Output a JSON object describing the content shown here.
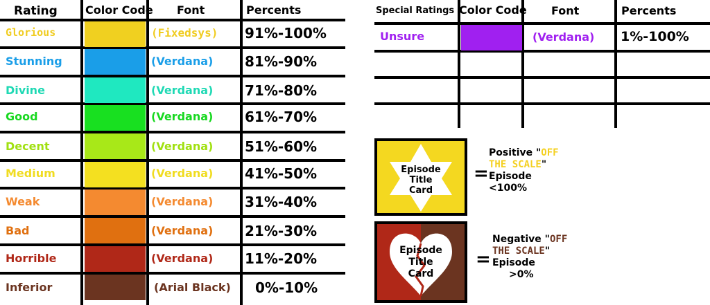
{
  "main_table": {
    "headers": {
      "rating": "Rating",
      "color": "Color Code",
      "font": "Font",
      "percents": "Percents"
    },
    "rows": [
      {
        "rating": "Glorious",
        "color": "#f0d020",
        "font": "(Fixedsys)",
        "percents": "91%-100%",
        "text_color": "#f0cc20"
      },
      {
        "rating": "Stunning",
        "color": "#1a9ee8",
        "font": "(Verdana)",
        "percents": "81%-90%",
        "text_color": "#1a9ee8"
      },
      {
        "rating": "Divine",
        "color": "#1fe8c0",
        "font": "(Verdana)",
        "percents": "71%-80%",
        "text_color": "#1fd9b4"
      },
      {
        "rating": "Good",
        "color": "#18e020",
        "font": "(Verdana)",
        "percents": "61%-70%",
        "text_color": "#18d820"
      },
      {
        "rating": "Decent",
        "color": "#a8e818",
        "font": "(Verdana)",
        "percents": "51%-60%",
        "text_color": "#a0e010"
      },
      {
        "rating": "Medium",
        "color": "#f4e020",
        "font": "(Verdana)",
        "percents": "41%-50%",
        "text_color": "#f0dc20"
      },
      {
        "rating": "Weak",
        "color": "#f48a30",
        "font": "(Verdana)",
        "percents": "31%-40%",
        "text_color": "#f48a30"
      },
      {
        "rating": "Bad",
        "color": "#e07010",
        "font": "(Verdana)",
        "percents": "21%-30%",
        "text_color": "#e07010"
      },
      {
        "rating": "Horrible",
        "color": "#b02818",
        "font": "(Verdana)",
        "percents": "11%-20%",
        "text_color": "#b02818"
      },
      {
        "rating": "Inferior",
        "color": "#6b3420",
        "font": "(Arial Black)",
        "percents": "0%-10%",
        "text_color": "#6b3420"
      }
    ]
  },
  "special_table": {
    "headers": {
      "rating": "Special Ratings",
      "color": "Color Code",
      "font": "Font",
      "percents": "Percents"
    },
    "rows": [
      {
        "rating": "Unsure",
        "color": "#a020f0",
        "font": "(Verdana)",
        "percents": "1%-100%",
        "text_color": "#a020f0"
      }
    ]
  },
  "legend": {
    "positive": {
      "card_text": [
        "Episode",
        "Title",
        "Card"
      ],
      "equals": "=",
      "line1a": "Positive \"",
      "line1b": "OFF",
      "line2a": "THE SCALE",
      "line2b": "\"",
      "line3": "Episode",
      "line4": "<100%",
      "accent": "#f4d020",
      "card_bg": "#f4d820"
    },
    "negative": {
      "card_text": [
        "Episode",
        "Title",
        "Card"
      ],
      "equals": "=",
      "line1a": "Negative \"",
      "line1b": "OFF",
      "line2a": "THE SCALE",
      "line2b": "\"",
      "line3": "Episode",
      "line4": ">0%",
      "accent": "#6b3420",
      "card_bg": "#b02818"
    }
  }
}
